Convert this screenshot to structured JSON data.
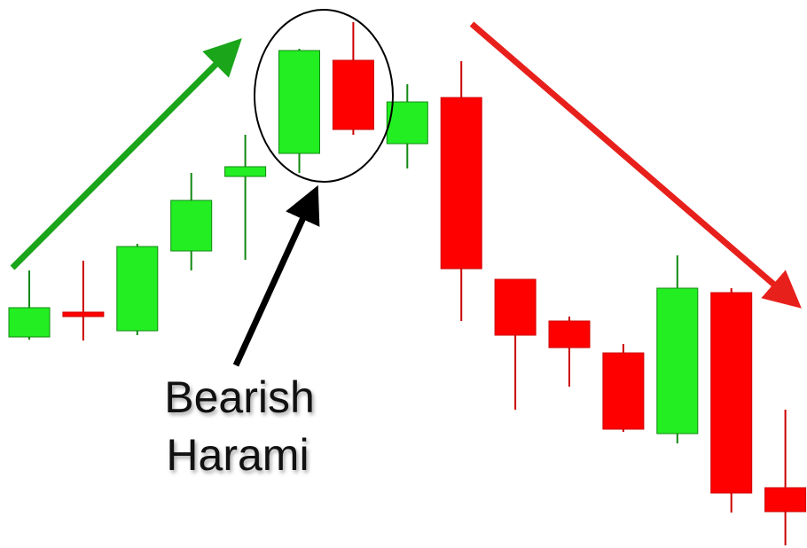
{
  "chart_data": {
    "type": "candlestick",
    "annotation": [
      "Bearish",
      "Harami"
    ],
    "open": [
      238,
      266,
      245,
      335,
      419,
      445,
      550,
      456,
      508,
      303,
      256,
      220,
      129,
      288,
      68
    ],
    "high": [
      313,
      324,
      343,
      423,
      466,
      563,
      593,
      523,
      549,
      303,
      261,
      230,
      330,
      293,
      156
    ],
    "low": [
      235,
      234,
      240,
      313,
      325,
      423,
      466,
      428,
      256,
      156,
      182,
      131,
      118,
      40,
      3
    ],
    "close": [
      271,
      261,
      340,
      392,
      430,
      561,
      472,
      503,
      315,
      240,
      226,
      134,
      293,
      62,
      41
    ],
    "up_color": "#22ee22",
    "down_color": "#ff0000",
    "ylim": [
      0,
      618
    ]
  }
}
